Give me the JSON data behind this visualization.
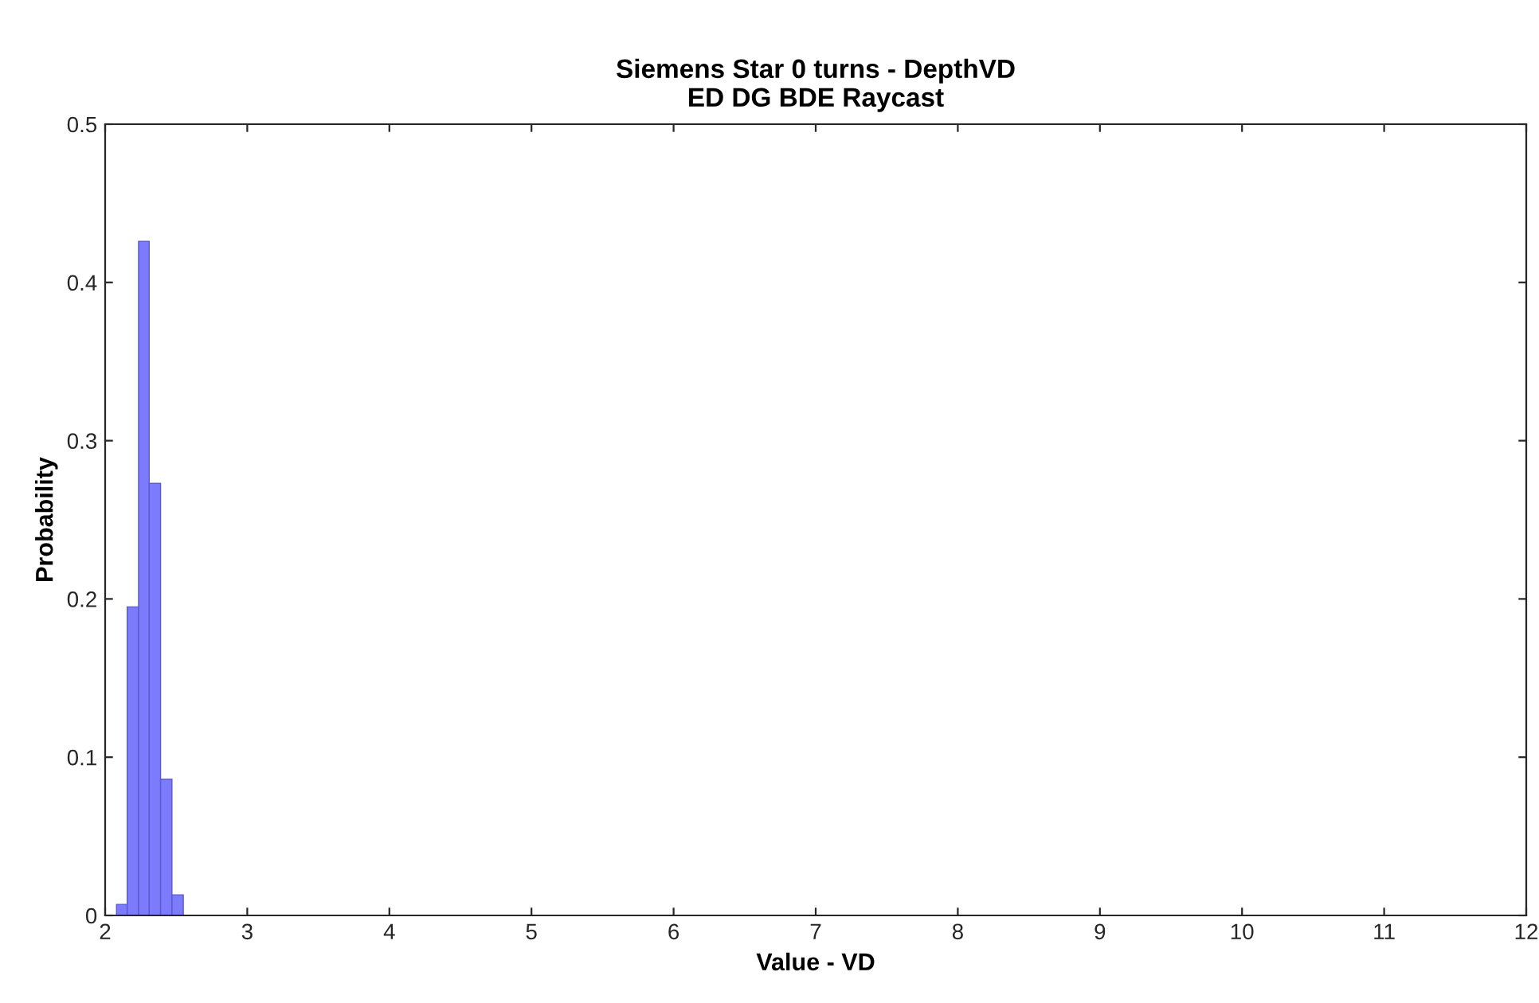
{
  "chart_data": {
    "type": "histogram",
    "title": "Siemens Star 0 turns - DepthVD\nED DG BDE Raycast",
    "xlabel": "Value - VD",
    "ylabel": "Probability",
    "bins": [
      2.08,
      2.155,
      2.235,
      2.31,
      2.39,
      2.47,
      2.55
    ],
    "values": [
      0.007,
      0.195,
      0.426,
      0.273,
      0.086,
      0.013
    ],
    "color": "#7b7bfb",
    "xlim": [
      2,
      12
    ],
    "xticks": [
      2,
      3,
      4,
      5,
      6,
      7,
      8,
      9,
      10,
      11,
      12
    ],
    "ylim": [
      0,
      0.5
    ],
    "yticks": [
      0,
      0.1,
      0.2,
      0.3,
      0.4,
      0.5
    ],
    "grid": false,
    "legend": false
  }
}
